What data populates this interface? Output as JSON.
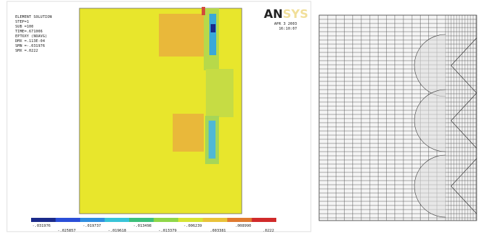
{
  "header": {
    "info": [
      "ELEMENT SOLUTION",
      "STEP=1",
      "SUB =100",
      "TIME=.671006",
      "EPTOXY   (NOAVG)",
      "DMX =.113E-04",
      "SMN =-.031976",
      "SMX =.0222"
    ],
    "logo_strong": "AN",
    "logo_faint": "SYS",
    "date": "APR  3 2003",
    "time": "16:10:07"
  },
  "legend": {
    "labels": [
      "-.031976",
      "-.025857",
      "-.019737",
      "-.019618",
      "-.013498",
      "-.013379",
      "-.006239",
      ".003381",
      ".008990",
      ".0222"
    ]
  }
}
